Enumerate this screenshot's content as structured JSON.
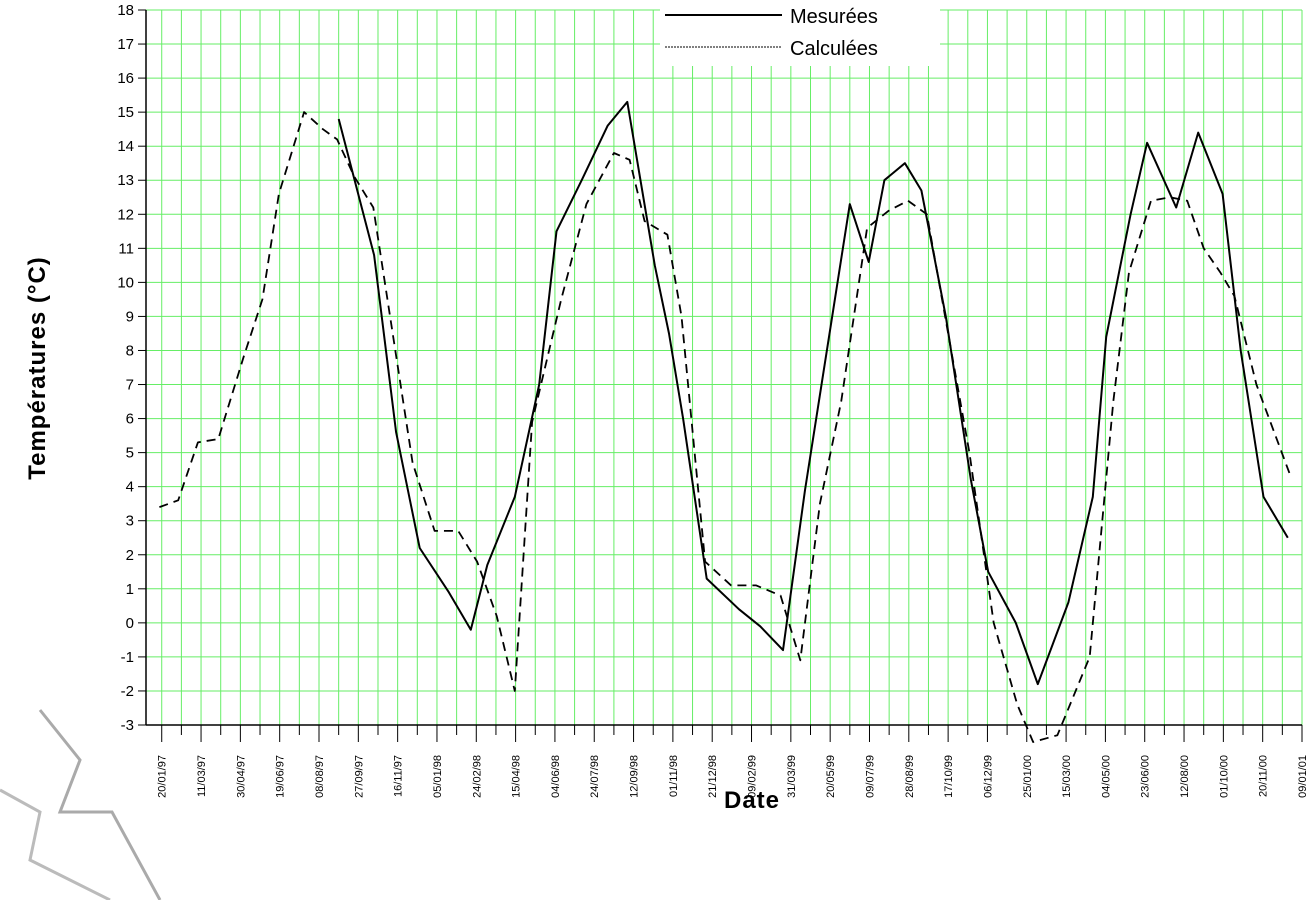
{
  "chart_data": {
    "type": "line",
    "title": "",
    "xlabel": "Date",
    "ylabel": "Températures (°C)",
    "ylim": [
      -3,
      18
    ],
    "yticks": [
      -3,
      -2,
      -1,
      0,
      1,
      2,
      3,
      4,
      5,
      6,
      7,
      8,
      9,
      10,
      11,
      12,
      13,
      14,
      15,
      16,
      17,
      18
    ],
    "xlim": [
      "1996-12-31",
      "2001-01-09"
    ],
    "x_tick_labels": [
      "20/01/97",
      "11/03/97",
      "30/04/97",
      "19/06/97",
      "08/08/97",
      "27/09/97",
      "16/11/97",
      "05/01/98",
      "24/02/98",
      "15/04/98",
      "04/06/98",
      "24/07/98",
      "12/09/98",
      "01/11/98",
      "21/12/98",
      "09/02/99",
      "31/03/99",
      "20/05/99",
      "09/07/99",
      "28/08/99",
      "17/10/99",
      "06/12/99",
      "25/01/00",
      "15/03/00",
      "04/05/00",
      "23/06/00",
      "12/08/00",
      "01/10/00",
      "20/11/00",
      "09/01/01"
    ],
    "grid": true,
    "grid_color": "#66ee66",
    "legend_position": "top-right",
    "series": [
      {
        "name": "Mesurées",
        "style": "solid",
        "points": [
          {
            "x": "1997-09-02",
            "y": 14.8
          },
          {
            "x": "1997-10-17",
            "y": 10.8
          },
          {
            "x": "1997-11-14",
            "y": 5.6
          },
          {
            "x": "1997-12-14",
            "y": 2.2
          },
          {
            "x": "1998-01-20",
            "y": 0.9
          },
          {
            "x": "1998-02-17",
            "y": -0.2
          },
          {
            "x": "1998-03-10",
            "y": 1.7
          },
          {
            "x": "1998-04-14",
            "y": 3.7
          },
          {
            "x": "1998-05-15",
            "y": 7.0
          },
          {
            "x": "1998-06-06",
            "y": 11.5
          },
          {
            "x": "1998-07-08",
            "y": 13.0
          },
          {
            "x": "1998-08-10",
            "y": 14.6
          },
          {
            "x": "1998-09-04",
            "y": 15.3
          },
          {
            "x": "1998-10-09",
            "y": 10.5
          },
          {
            "x": "1998-10-27",
            "y": 8.5
          },
          {
            "x": "1998-11-14",
            "y": 6.0
          },
          {
            "x": "1998-12-14",
            "y": 1.3
          },
          {
            "x": "1999-01-24",
            "y": 0.4
          },
          {
            "x": "1999-02-20",
            "y": -0.1
          },
          {
            "x": "1999-03-21",
            "y": -0.8
          },
          {
            "x": "1999-04-18",
            "y": 3.9
          },
          {
            "x": "1999-06-14",
            "y": 12.3
          },
          {
            "x": "1999-07-08",
            "y": 10.6
          },
          {
            "x": "1999-07-28",
            "y": 13.0
          },
          {
            "x": "1999-08-23",
            "y": 13.5
          },
          {
            "x": "1999-09-13",
            "y": 12.7
          },
          {
            "x": "1999-10-14",
            "y": 9.0
          },
          {
            "x": "1999-11-15",
            "y": 4.2
          },
          {
            "x": "1999-12-07",
            "y": 1.5
          },
          {
            "x": "2000-01-11",
            "y": 0.0
          },
          {
            "x": "2000-02-08",
            "y": -1.8
          },
          {
            "x": "2000-03-18",
            "y": 0.6
          },
          {
            "x": "2000-04-18",
            "y": 3.7
          },
          {
            "x": "2000-05-05",
            "y": 8.4
          },
          {
            "x": "2000-06-05",
            "y": 12.0
          },
          {
            "x": "2000-06-26",
            "y": 14.1
          },
          {
            "x": "2000-08-02",
            "y": 12.2
          },
          {
            "x": "2000-08-30",
            "y": 14.4
          },
          {
            "x": "2000-09-30",
            "y": 12.6
          },
          {
            "x": "2000-10-23",
            "y": 8.0
          },
          {
            "x": "2000-11-21",
            "y": 3.7
          },
          {
            "x": "2000-12-22",
            "y": 2.5
          }
        ]
      },
      {
        "name": "Calculées",
        "style": "dashed",
        "points": [
          {
            "x": "1997-01-17",
            "y": 3.4
          },
          {
            "x": "1997-02-10",
            "y": 3.6
          },
          {
            "x": "1997-03-07",
            "y": 5.3
          },
          {
            "x": "1997-04-02",
            "y": 5.4
          },
          {
            "x": "1997-05-04",
            "y": 7.8
          },
          {
            "x": "1997-05-28",
            "y": 9.5
          },
          {
            "x": "1997-06-18",
            "y": 12.6
          },
          {
            "x": "1997-07-20",
            "y": 15.0
          },
          {
            "x": "1997-08-13",
            "y": 14.5
          },
          {
            "x": "1997-08-31",
            "y": 14.2
          },
          {
            "x": "1997-09-22",
            "y": 13.1
          },
          {
            "x": "1997-10-16",
            "y": 12.2
          },
          {
            "x": "1997-12-05",
            "y": 4.7
          },
          {
            "x": "1998-01-02",
            "y": 2.7
          },
          {
            "x": "1998-02-01",
            "y": 2.7
          },
          {
            "x": "1998-02-25",
            "y": 1.8
          },
          {
            "x": "1998-03-22",
            "y": 0.2
          },
          {
            "x": "1998-04-14",
            "y": -2.0
          },
          {
            "x": "1998-05-06",
            "y": 5.9
          },
          {
            "x": "1998-06-12",
            "y": 9.5
          },
          {
            "x": "1998-07-14",
            "y": 12.3
          },
          {
            "x": "1998-08-18",
            "y": 13.8
          },
          {
            "x": "1998-09-07",
            "y": 13.6
          },
          {
            "x": "1998-09-26",
            "y": 11.8
          },
          {
            "x": "1998-10-25",
            "y": 11.4
          },
          {
            "x": "1998-11-12",
            "y": 9.0
          },
          {
            "x": "1998-12-12",
            "y": 1.8
          },
          {
            "x": "1999-01-14",
            "y": 1.1
          },
          {
            "x": "1999-02-15",
            "y": 1.1
          },
          {
            "x": "1999-03-18",
            "y": 0.8
          },
          {
            "x": "1999-04-12",
            "y": -1.1
          },
          {
            "x": "1999-05-07",
            "y": 3.5
          },
          {
            "x": "1999-06-03",
            "y": 6.5
          },
          {
            "x": "1999-07-06",
            "y": 11.6
          },
          {
            "x": "1999-08-02",
            "y": 12.1
          },
          {
            "x": "1999-08-27",
            "y": 12.4
          },
          {
            "x": "1999-09-20",
            "y": 12.0
          },
          {
            "x": "1999-11-13",
            "y": 5.0
          },
          {
            "x": "1999-12-14",
            "y": 0.0
          },
          {
            "x": "2000-01-13",
            "y": -2.4
          },
          {
            "x": "2000-02-02",
            "y": -3.5
          },
          {
            "x": "2000-03-04",
            "y": -3.3
          },
          {
            "x": "2000-04-14",
            "y": -1.0
          },
          {
            "x": "2000-05-14",
            "y": 6.5
          },
          {
            "x": "2000-06-03",
            "y": 10.3
          },
          {
            "x": "2000-07-01",
            "y": 12.4
          },
          {
            "x": "2000-07-25",
            "y": 12.5
          },
          {
            "x": "2000-08-16",
            "y": 12.4
          },
          {
            "x": "2000-09-06",
            "y": 11.0
          },
          {
            "x": "2000-09-27",
            "y": 10.3
          },
          {
            "x": "2000-10-15",
            "y": 9.6
          },
          {
            "x": "2000-11-12",
            "y": 7.0
          },
          {
            "x": "2000-12-24",
            "y": 4.4
          }
        ]
      }
    ]
  }
}
